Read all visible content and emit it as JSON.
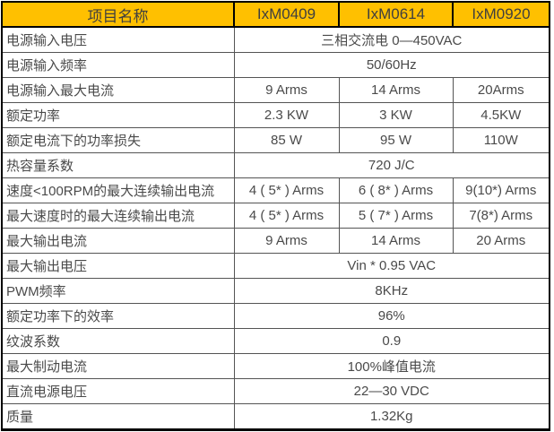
{
  "table": {
    "header": {
      "item_name": "项目名称",
      "models": [
        "IxM0409",
        "IxM0614",
        "IxM0920"
      ]
    },
    "rows": [
      {
        "label": "电源输入电压",
        "span": "三相交流电 0—450VAC"
      },
      {
        "label": "电源输入频率",
        "span": "50/60Hz"
      },
      {
        "label": "电源输入最大电流",
        "values": [
          "9 Arms",
          "14 Arms",
          "20Arms"
        ]
      },
      {
        "label": "额定功率",
        "values": [
          "2.3 KW",
          "3 KW",
          "4.5KW"
        ]
      },
      {
        "label": "额定电流下的功率损失",
        "values": [
          "85 W",
          "95 W",
          "110W"
        ]
      },
      {
        "label": "热容量系数",
        "span": "720 J/C"
      },
      {
        "label": "速度<100RPM的最大连续输出电流",
        "values": [
          "4 ( 5* ) Arms",
          "6 ( 8* ) Arms",
          "9(10*) Arms"
        ]
      },
      {
        "label": "最大速度时的最大连续输出电流",
        "values": [
          "4 ( 5* ) Arms",
          "5 ( 7* ) Arms",
          "7(8*) Arms"
        ]
      },
      {
        "label": "最大输出电流",
        "values": [
          "9 Arms",
          "14 Arms",
          "20 Arms"
        ]
      },
      {
        "label": "最大输出电压",
        "span": "Vin * 0.95 VAC"
      },
      {
        "label": "PWM频率",
        "span": "8KHz"
      },
      {
        "label": "额定功率下的效率",
        "span": "96%"
      },
      {
        "label": "纹波系数",
        "span": "0.9"
      },
      {
        "label": "最大制动电流",
        "span": "100%峰值电流"
      },
      {
        "label": "直流电源电压",
        "span": "22—30 VDC"
      },
      {
        "label": "质量",
        "span": "1.32Kg"
      }
    ],
    "colors": {
      "header_background": "#FFC000",
      "header_text": "#3F3F3F",
      "body_text": "#4A4A4A",
      "outer_border": "#000000",
      "inner_border": "#545454"
    }
  }
}
